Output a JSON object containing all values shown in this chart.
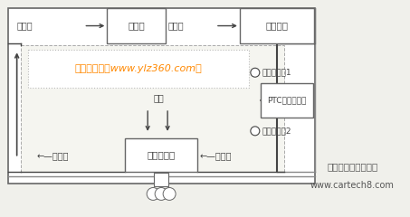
{
  "bg_color": "#f0f0eb",
  "box_edge": "#666666",
  "text_color": "#444444",
  "orange_text": "#ff8800",
  "title_zh": "中国汽车工程师之家",
  "title_url": "www.cartech8.com",
  "watermark_text": "一览众咨询（www.ylz360.com）",
  "sensor1_label": "温度传感器1",
  "sensor2_label": "温度传感器2",
  "ptc_label": "PTC液体加热器",
  "chuqishi_label": "除气室",
  "diandong_label": "电动水泵",
  "nuanfeng_label": "暖风散热器",
  "air_label": "空气",
  "coolant": "冷却液",
  "arr_right": "→",
  "arr_left": "←"
}
